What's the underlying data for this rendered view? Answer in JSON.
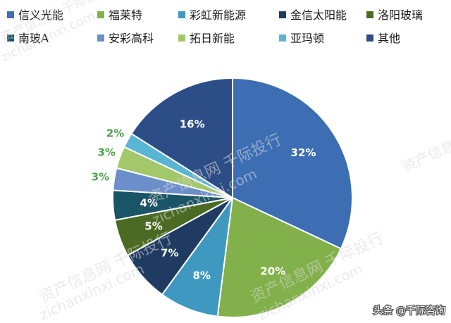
{
  "chart_data": {
    "type": "pie",
    "title": "",
    "categories": [
      "信义光能",
      "福莱特",
      "彩虹新能源",
      "金信太阳能",
      "洛阳玻璃",
      "南玻A",
      "安彩高科",
      "拓日新能",
      "亚玛顿",
      "其他"
    ],
    "values": [
      32,
      20,
      8,
      7,
      5,
      4,
      3,
      3,
      2,
      16
    ],
    "labels": [
      "32%",
      "20%",
      "8%",
      "7%",
      "5%",
      "4%",
      "3%",
      "3%",
      "2%",
      "16%"
    ],
    "colors": [
      "#3d6eb3",
      "#82b04a",
      "#3f98bf",
      "#203b62",
      "#4b6b24",
      "#1a5467",
      "#6c8fcb",
      "#a2c86a",
      "#5ab4d4",
      "#2d4d86"
    ],
    "start_angle_deg": 0,
    "direction": "clockwise",
    "legend_position": "top"
  },
  "watermark": {
    "brand": "资产信息网 千际投行",
    "url": "zichanxinxi.com"
  },
  "credit": "头条 @千际咨询"
}
